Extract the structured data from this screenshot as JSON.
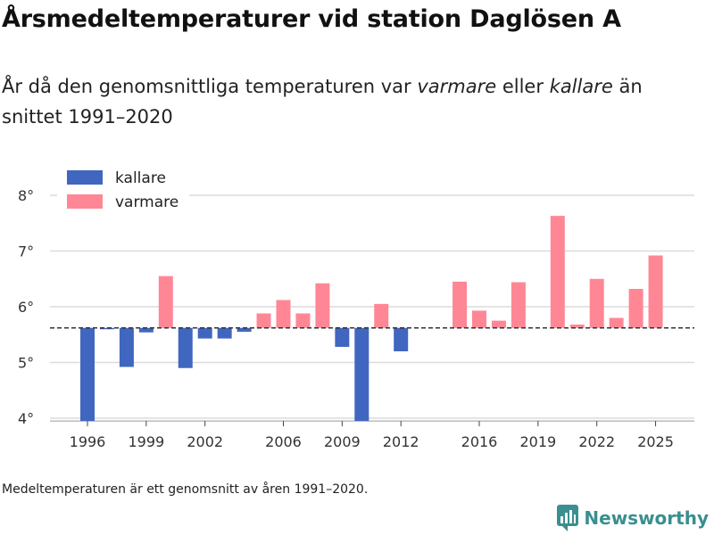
{
  "header": {
    "title": "Årsmedeltemperaturer vid station Daglösen A",
    "subtitle_part1": "År då den genomsnittliga temperaturen var ",
    "subtitle_warm": "varmare",
    "subtitle_part2": " eller ",
    "subtitle_cold": "kallare",
    "subtitle_part3": " än snittet 1991–2020"
  },
  "footnote": "Medeltemperaturen är ett genomsnitt av åren 1991–2020.",
  "brand": {
    "name": "Newsworthy",
    "color": "#3a8f8f"
  },
  "chart_data": {
    "type": "bar",
    "baseline": 5.62,
    "ylim": [
      3.95,
      8.25
    ],
    "y_ticks": [
      {
        "value": 4,
        "label": "4°"
      },
      {
        "value": 5,
        "label": "5°"
      },
      {
        "value": 6,
        "label": "6°"
      },
      {
        "value": 7,
        "label": "7°"
      },
      {
        "value": 8,
        "label": "8°"
      }
    ],
    "x_ticks": [
      "1996",
      "1999",
      "2002",
      "2006",
      "2009",
      "2012",
      "2016",
      "2019",
      "2022",
      "2025"
    ],
    "legend": [
      {
        "key": "cold",
        "label": "kallare",
        "color": "#4066c0"
      },
      {
        "key": "warm",
        "label": "varmare",
        "color": "#ff8795"
      }
    ],
    "years": [
      1996,
      1997,
      1998,
      1999,
      2000,
      2001,
      2002,
      2003,
      2004,
      2005,
      2006,
      2007,
      2008,
      2009,
      2010,
      2011,
      2012,
      2015,
      2016,
      2017,
      2018,
      2020,
      2021,
      2022,
      2023,
      2024,
      2025
    ],
    "values": [
      3.95,
      5.6,
      4.92,
      5.54,
      6.55,
      4.9,
      5.43,
      5.43,
      5.55,
      5.88,
      6.12,
      5.88,
      6.42,
      5.28,
      3.95,
      6.05,
      5.2,
      6.45,
      5.93,
      5.75,
      6.44,
      7.63,
      5.68,
      6.5,
      5.8,
      6.32,
      6.92
    ]
  }
}
